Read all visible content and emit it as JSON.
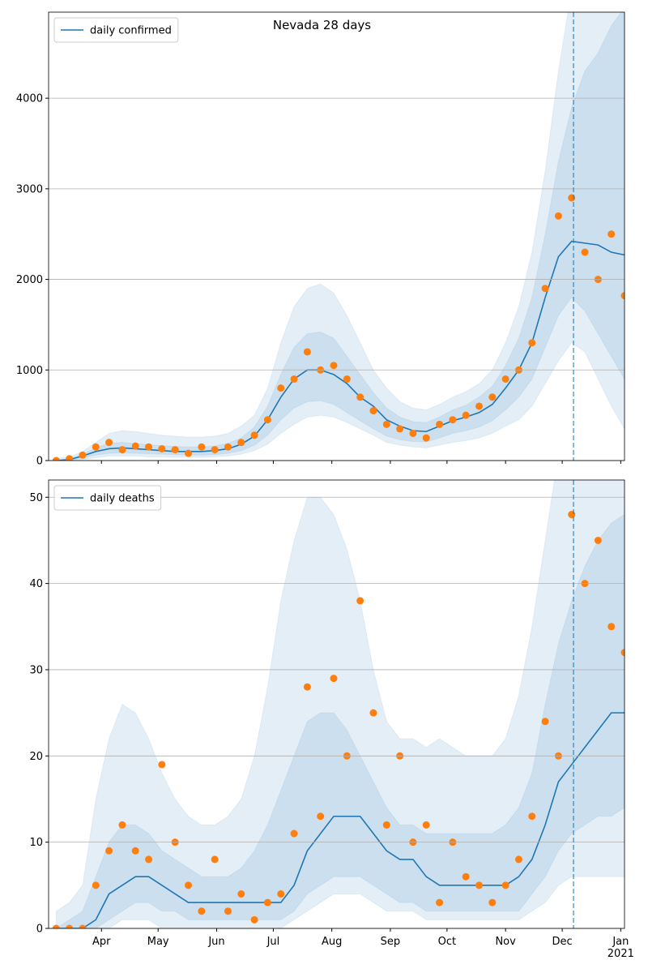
{
  "chart_data": [
    {
      "type": "line",
      "title": "Nevada 28 days",
      "x": [
        "2020-03-08",
        "2020-03-15",
        "2020-03-22",
        "2020-03-29",
        "2020-04-05",
        "2020-04-12",
        "2020-04-19",
        "2020-04-26",
        "2020-05-03",
        "2020-05-10",
        "2020-05-17",
        "2020-05-24",
        "2020-05-31",
        "2020-06-07",
        "2020-06-14",
        "2020-06-21",
        "2020-06-28",
        "2020-07-05",
        "2020-07-12",
        "2020-07-19",
        "2020-07-26",
        "2020-08-02",
        "2020-08-09",
        "2020-08-16",
        "2020-08-23",
        "2020-08-30",
        "2020-09-06",
        "2020-09-13",
        "2020-09-20",
        "2020-09-27",
        "2020-10-04",
        "2020-10-11",
        "2020-10-18",
        "2020-10-25",
        "2020-11-01",
        "2020-11-08",
        "2020-11-15",
        "2020-11-22",
        "2020-11-29",
        "2020-12-06",
        "2020-12-13",
        "2020-12-20",
        "2020-12-27",
        "2021-01-03"
      ],
      "series": [
        {
          "name": "daily confirmed",
          "color": "#1f77b4",
          "values": [
            0,
            10,
            50,
            100,
            130,
            140,
            130,
            120,
            110,
            100,
            100,
            100,
            110,
            130,
            180,
            270,
            450,
            700,
            900,
            1000,
            1000,
            950,
            850,
            700,
            600,
            450,
            380,
            330,
            320,
            380,
            440,
            480,
            530,
            620,
            800,
            1000,
            1300,
            1800,
            2250,
            2420,
            2400,
            2380,
            2300,
            2270
          ]
        },
        {
          "type": "scatter",
          "color": "#ff7f0e",
          "values": [
            0,
            20,
            60,
            150,
            200,
            120,
            160,
            150,
            130,
            120,
            80,
            150,
            120,
            150,
            200,
            280,
            450,
            800,
            900,
            1200,
            1000,
            1050,
            900,
            700,
            550,
            400,
            350,
            300,
            250,
            400,
            450,
            500,
            600,
            700,
            900,
            1000,
            1300,
            1900,
            2700,
            2900,
            2300,
            2000,
            2500,
            1820
          ]
        }
      ],
      "bands": [
        {
          "color": "#1f77b4",
          "lower": [
            0,
            0,
            10,
            30,
            50,
            50,
            50,
            40,
            40,
            35,
            35,
            35,
            40,
            50,
            70,
            110,
            180,
            300,
            400,
            480,
            500,
            480,
            420,
            350,
            280,
            200,
            170,
            150,
            140,
            170,
            200,
            220,
            250,
            300,
            380,
            450,
            600,
            850,
            1100,
            1300,
            1200,
            900,
            600,
            350
          ],
          "upper": [
            20,
            40,
            100,
            200,
            300,
            330,
            320,
            300,
            280,
            270,
            260,
            260,
            270,
            300,
            380,
            500,
            800,
            1300,
            1700,
            1900,
            1950,
            1850,
            1600,
            1300,
            1000,
            800,
            650,
            580,
            560,
            620,
            700,
            760,
            850,
            1000,
            1300,
            1700,
            2300,
            3200,
            4300,
            5200,
            5500,
            5500,
            5500,
            5500
          ]
        },
        {
          "color": "#1f77b4",
          "lower": [
            0,
            3,
            30,
            60,
            80,
            85,
            80,
            75,
            70,
            65,
            60,
            60,
            65,
            80,
            110,
            170,
            280,
            450,
            580,
            650,
            660,
            620,
            530,
            440,
            350,
            270,
            230,
            210,
            205,
            250,
            300,
            330,
            370,
            440,
            560,
            700,
            900,
            1250,
            1600,
            1800,
            1650,
            1400,
            1150,
            900
          ],
          "upper": [
            5,
            20,
            70,
            140,
            190,
            200,
            190,
            175,
            165,
            155,
            150,
            150,
            160,
            190,
            250,
            370,
            600,
            950,
            1250,
            1400,
            1420,
            1350,
            1150,
            950,
            750,
            580,
            480,
            430,
            420,
            480,
            560,
            610,
            700,
            820,
            1050,
            1350,
            1800,
            2500,
            3300,
            3900,
            4300,
            4500,
            4800,
            5000
          ]
        }
      ],
      "vline": "2020-12-07",
      "xlim": [
        "2020-03-04",
        "2021-01-03"
      ],
      "xticks": [
        "2020-04-01",
        "2020-05-01",
        "2020-06-01",
        "2020-07-01",
        "2020-08-01",
        "2020-09-01",
        "2020-10-01",
        "2020-11-01",
        "2020-12-01",
        "2021-01-01"
      ],
      "ylim": [
        0,
        4950
      ],
      "yticks": [
        0,
        1000,
        2000,
        3000,
        4000
      ],
      "grid": true,
      "legend": "upper left"
    },
    {
      "type": "line",
      "x": [
        "2020-03-08",
        "2020-03-15",
        "2020-03-22",
        "2020-03-29",
        "2020-04-05",
        "2020-04-12",
        "2020-04-19",
        "2020-04-26",
        "2020-05-03",
        "2020-05-10",
        "2020-05-17",
        "2020-05-24",
        "2020-05-31",
        "2020-06-07",
        "2020-06-14",
        "2020-06-21",
        "2020-06-28",
        "2020-07-05",
        "2020-07-12",
        "2020-07-19",
        "2020-07-26",
        "2020-08-02",
        "2020-08-09",
        "2020-08-16",
        "2020-08-23",
        "2020-08-30",
        "2020-09-06",
        "2020-09-13",
        "2020-09-20",
        "2020-09-27",
        "2020-10-04",
        "2020-10-11",
        "2020-10-18",
        "2020-10-25",
        "2020-11-01",
        "2020-11-08",
        "2020-11-15",
        "2020-11-22",
        "2020-11-29",
        "2020-12-06",
        "2020-12-13",
        "2020-12-20",
        "2020-12-27",
        "2021-01-03"
      ],
      "series": [
        {
          "name": "daily deaths",
          "color": "#1f77b4",
          "values": [
            0,
            0,
            0,
            1,
            4,
            5,
            6,
            6,
            5,
            4,
            3,
            3,
            3,
            3,
            3,
            3,
            3,
            3,
            5,
            9,
            11,
            13,
            13,
            13,
            11,
            9,
            8,
            8,
            6,
            5,
            5,
            5,
            5,
            5,
            5,
            6,
            8,
            12,
            17,
            19,
            21,
            23,
            25,
            25
          ]
        },
        {
          "type": "scatter",
          "color": "#ff7f0e",
          "values": [
            0,
            0,
            0,
            5,
            9,
            12,
            9,
            8,
            19,
            10,
            5,
            2,
            8,
            2,
            4,
            1,
            3,
            4,
            11,
            28,
            13,
            29,
            20,
            38,
            25,
            12,
            20,
            10,
            12,
            3,
            10,
            6,
            5,
            3,
            5,
            8,
            13,
            24,
            20,
            48,
            40,
            45,
            35,
            32
          ]
        }
      ],
      "bands": [
        {
          "color": "#1f77b4",
          "lower": [
            0,
            0,
            0,
            0,
            0,
            1,
            1,
            1,
            0,
            0,
            0,
            0,
            0,
            0,
            0,
            0,
            0,
            0,
            1,
            2,
            3,
            4,
            4,
            4,
            3,
            2,
            2,
            2,
            1,
            1,
            1,
            1,
            1,
            1,
            1,
            1,
            2,
            3,
            5,
            6,
            6,
            6,
            6,
            6
          ],
          "upper": [
            2,
            3,
            5,
            15,
            22,
            26,
            25,
            22,
            18,
            15,
            13,
            12,
            12,
            13,
            15,
            20,
            28,
            38,
            45,
            50,
            50,
            48,
            44,
            38,
            30,
            24,
            22,
            22,
            21,
            22,
            21,
            20,
            20,
            20,
            22,
            27,
            35,
            45,
            55,
            60,
            60,
            60,
            60,
            60
          ]
        },
        {
          "color": "#1f77b4",
          "lower": [
            0,
            0,
            0,
            0,
            1,
            2,
            3,
            3,
            2,
            2,
            1,
            1,
            1,
            1,
            1,
            1,
            1,
            1,
            2,
            4,
            5,
            6,
            6,
            6,
            5,
            4,
            3,
            3,
            2,
            2,
            2,
            2,
            2,
            2,
            2,
            2,
            4,
            6,
            9,
            11,
            12,
            13,
            13,
            14
          ],
          "upper": [
            0,
            1,
            2,
            6,
            10,
            12,
            12,
            11,
            9,
            8,
            7,
            6,
            6,
            6,
            7,
            9,
            12,
            16,
            20,
            24,
            25,
            25,
            23,
            20,
            17,
            14,
            12,
            12,
            11,
            11,
            11,
            11,
            11,
            11,
            12,
            14,
            18,
            26,
            33,
            38,
            42,
            45,
            47,
            48
          ]
        }
      ],
      "vline": "2020-12-07",
      "xlim": [
        "2020-03-04",
        "2021-01-03"
      ],
      "xticks": [
        {
          "value": "2020-04-01",
          "label": "Apr"
        },
        {
          "value": "2020-05-01",
          "label": "May"
        },
        {
          "value": "2020-06-01",
          "label": "Jun"
        },
        {
          "value": "2020-07-01",
          "label": "Jul"
        },
        {
          "value": "2020-08-01",
          "label": "Aug"
        },
        {
          "value": "2020-09-01",
          "label": "Sep"
        },
        {
          "value": "2020-10-01",
          "label": "Oct"
        },
        {
          "value": "2020-11-01",
          "label": "Nov"
        },
        {
          "value": "2020-12-01",
          "label": "Dec"
        },
        {
          "value": "2021-01-01",
          "label": "Jan\n2021"
        }
      ],
      "ylim": [
        0,
        52
      ],
      "yticks": [
        0,
        10,
        20,
        30,
        40,
        50
      ],
      "grid": true,
      "legend": "upper left"
    }
  ]
}
